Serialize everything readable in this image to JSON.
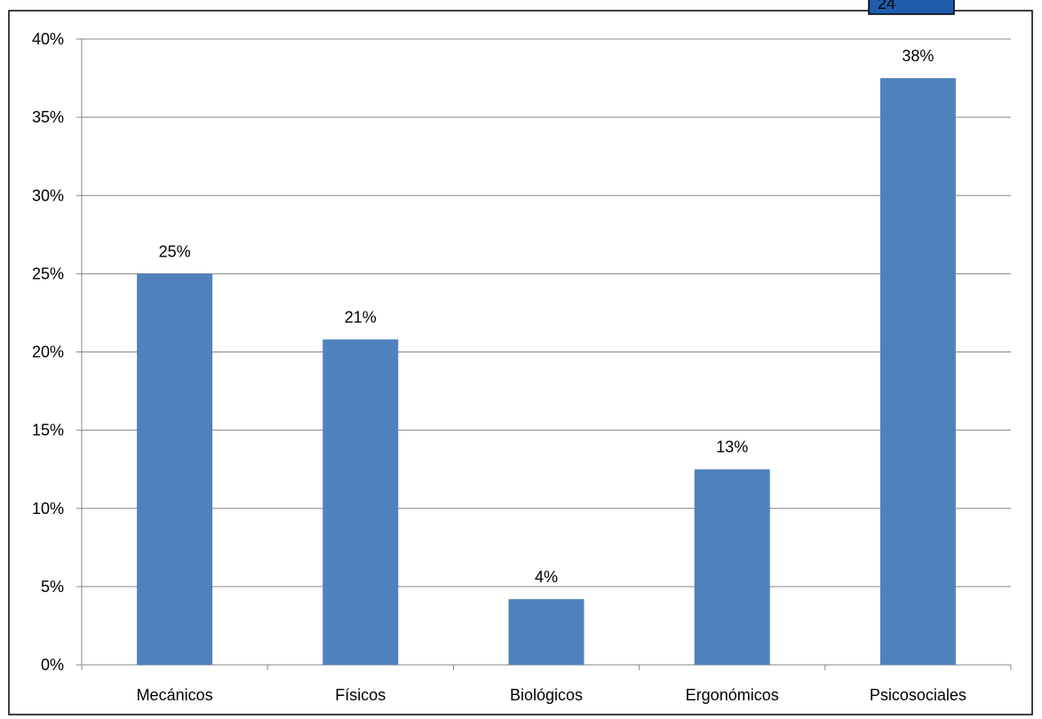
{
  "page_number": "24",
  "colors": {
    "bar": "#4f81bd",
    "grid": "#868686",
    "axis": "#868686",
    "frame": "#000000",
    "page_badge": "#1f5dab",
    "text": "#000000"
  },
  "chart_data": {
    "type": "bar",
    "title": "",
    "xlabel": "",
    "ylabel": "",
    "categories": [
      "Mecánicos",
      "Físicos",
      "Biológicos",
      "Ergonómicos",
      "Psicosociales"
    ],
    "values": [
      0.25,
      0.208,
      0.042,
      0.125,
      0.375
    ],
    "data_labels": [
      "25%",
      "21%",
      "4%",
      "13%",
      "38%"
    ],
    "ylim": [
      0,
      0.4
    ],
    "y_ticks": [
      0,
      0.05,
      0.1,
      0.15,
      0.2,
      0.25,
      0.3,
      0.35,
      0.4
    ],
    "y_tick_labels": [
      "0%",
      "5%",
      "10%",
      "15%",
      "20%",
      "25%",
      "30%",
      "35%",
      "40%"
    ],
    "grid": true,
    "legend": "none"
  }
}
